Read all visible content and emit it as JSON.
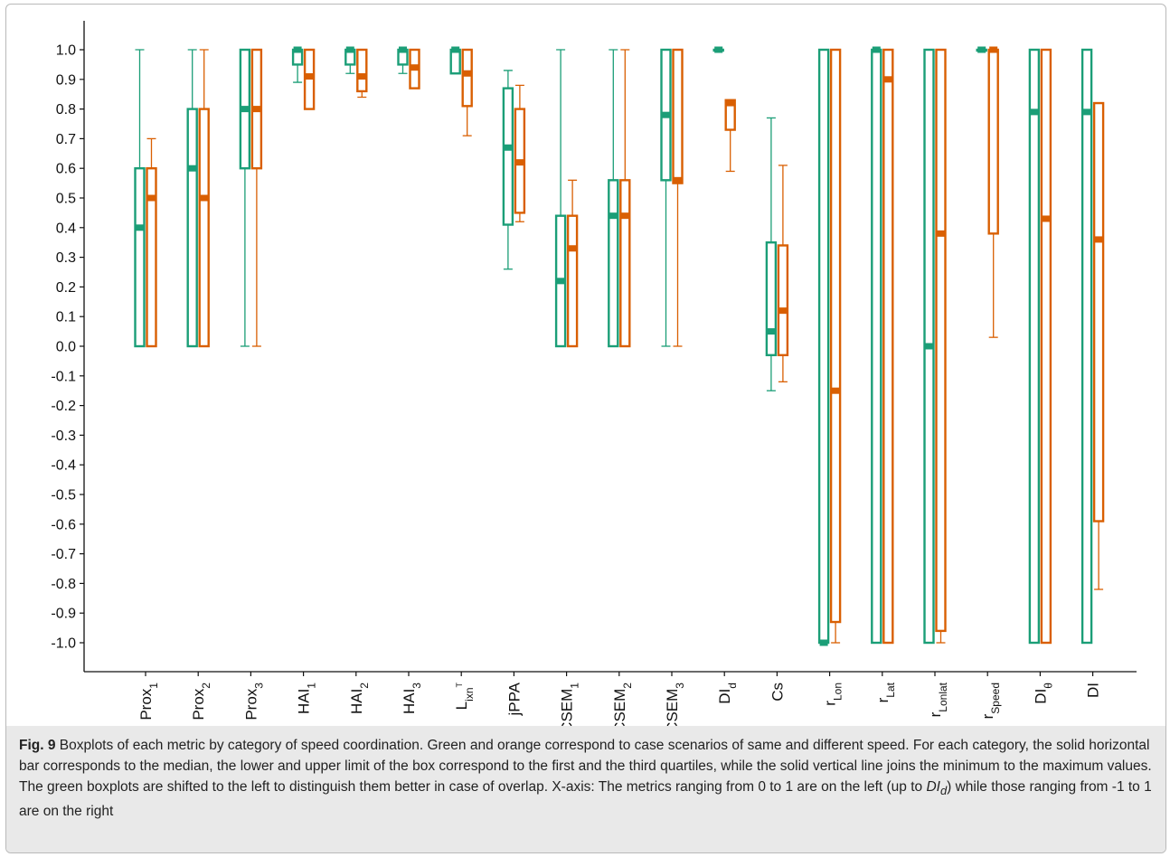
{
  "chart_data": {
    "type": "box",
    "ylim": [
      -1.1,
      1.1
    ],
    "y_ticks": [
      "1.0",
      "0.9",
      "0.8",
      "0.7",
      "0.6",
      "0.5",
      "0.4",
      "0.3",
      "0.2",
      "0.1",
      "0.0",
      "-0.1",
      "-0.2",
      "-0.3",
      "-0.4",
      "-0.5",
      "-0.6",
      "-0.7",
      "-0.8",
      "-0.9",
      "-1.0"
    ],
    "categories": [
      {
        "base": "Prox",
        "sub": "1"
      },
      {
        "base": "Prox",
        "sub": "2"
      },
      {
        "base": "Prox",
        "sub": "3"
      },
      {
        "base": "HAI",
        "sub": "1"
      },
      {
        "base": "HAI",
        "sub": "2"
      },
      {
        "base": "HAI",
        "sub": "3"
      },
      {
        "base": "L",
        "sub": "ixn",
        "sup": "T"
      },
      {
        "base": "jPPA",
        "sub": ""
      },
      {
        "base": "CSEM",
        "sub": "1"
      },
      {
        "base": "CSEM",
        "sub": "2"
      },
      {
        "base": "CSEM",
        "sub": "3"
      },
      {
        "base": "DI",
        "sub": "d"
      },
      {
        "base": "Cs",
        "sub": ""
      },
      {
        "base": "r",
        "sub": "Lon"
      },
      {
        "base": "r",
        "sub": "Lat"
      },
      {
        "base": "r",
        "sub": "Lonlat"
      },
      {
        "base": "r",
        "sub": "Speed"
      },
      {
        "base": "DI",
        "sub": "θ"
      },
      {
        "base": "DI",
        "sub": ""
      }
    ],
    "series": [
      {
        "color": "#1b9e77",
        "stats": [
          {
            "min": 0.0,
            "q1": 0.0,
            "median": 0.4,
            "q3": 0.6,
            "max": 1.0
          },
          {
            "min": 0.0,
            "q1": 0.0,
            "median": 0.6,
            "q3": 0.8,
            "max": 1.0
          },
          {
            "min": 0.0,
            "q1": 0.6,
            "median": 0.8,
            "q3": 1.0,
            "max": 1.0
          },
          {
            "min": 0.89,
            "q1": 0.95,
            "median": 1.0,
            "q3": 1.0,
            "max": 1.0
          },
          {
            "min": 0.92,
            "q1": 0.95,
            "median": 1.0,
            "q3": 1.0,
            "max": 1.0
          },
          {
            "min": 0.92,
            "q1": 0.95,
            "median": 1.0,
            "q3": 1.0,
            "max": 1.0
          },
          {
            "min": 0.92,
            "q1": 0.92,
            "median": 1.0,
            "q3": 1.0,
            "max": 1.0
          },
          {
            "min": 0.26,
            "q1": 0.41,
            "median": 0.67,
            "q3": 0.87,
            "max": 0.93
          },
          {
            "min": 0.0,
            "q1": 0.0,
            "median": 0.22,
            "q3": 0.44,
            "max": 1.0
          },
          {
            "min": 0.0,
            "q1": 0.0,
            "median": 0.44,
            "q3": 0.56,
            "max": 1.0
          },
          {
            "min": 0.0,
            "q1": 0.56,
            "median": 0.78,
            "q3": 1.0,
            "max": 1.0
          },
          {
            "min": 1.0,
            "q1": 1.0,
            "median": 1.0,
            "q3": 1.0,
            "max": 1.0
          },
          {
            "min": -0.15,
            "q1": -0.03,
            "median": 0.05,
            "q3": 0.35,
            "max": 0.77
          },
          {
            "min": -1.0,
            "q1": -1.0,
            "median": -1.0,
            "q3": 1.0,
            "max": 1.0
          },
          {
            "min": -1.0,
            "q1": -1.0,
            "median": 1.0,
            "q3": 1.0,
            "max": 1.0
          },
          {
            "min": -1.0,
            "q1": -1.0,
            "median": 0.0,
            "q3": 1.0,
            "max": 1.0
          },
          {
            "min": 1.0,
            "q1": 1.0,
            "median": 1.0,
            "q3": 1.0,
            "max": 1.0
          },
          {
            "min": -1.0,
            "q1": -1.0,
            "median": 0.79,
            "q3": 1.0,
            "max": 1.0
          },
          {
            "min": -1.0,
            "q1": -1.0,
            "median": 0.79,
            "q3": 1.0,
            "max": 1.0
          }
        ]
      },
      {
        "color": "#d95f02",
        "stats": [
          {
            "min": 0.0,
            "q1": 0.0,
            "median": 0.5,
            "q3": 0.6,
            "max": 0.7
          },
          {
            "min": 0.0,
            "q1": 0.0,
            "median": 0.5,
            "q3": 0.8,
            "max": 1.0
          },
          {
            "min": 0.0,
            "q1": 0.6,
            "median": 0.8,
            "q3": 1.0,
            "max": 1.0
          },
          {
            "min": 0.8,
            "q1": 0.8,
            "median": 0.91,
            "q3": 1.0,
            "max": 1.0
          },
          {
            "min": 0.84,
            "q1": 0.86,
            "median": 0.91,
            "q3": 1.0,
            "max": 1.0
          },
          {
            "min": 0.87,
            "q1": 0.87,
            "median": 0.94,
            "q3": 1.0,
            "max": 1.0
          },
          {
            "min": 0.71,
            "q1": 0.81,
            "median": 0.92,
            "q3": 1.0,
            "max": 1.0
          },
          {
            "min": 0.42,
            "q1": 0.45,
            "median": 0.62,
            "q3": 0.8,
            "max": 0.88
          },
          {
            "min": 0.0,
            "q1": 0.0,
            "median": 0.33,
            "q3": 0.44,
            "max": 0.56
          },
          {
            "min": 0.0,
            "q1": 0.0,
            "median": 0.44,
            "q3": 0.56,
            "max": 1.0
          },
          {
            "min": 0.0,
            "q1": 0.55,
            "median": 0.56,
            "q3": 1.0,
            "max": 1.0
          },
          {
            "min": 0.59,
            "q1": 0.73,
            "median": 0.82,
            "q3": 0.83,
            "max": 0.83
          },
          {
            "min": -0.12,
            "q1": -0.03,
            "median": 0.12,
            "q3": 0.34,
            "max": 0.61
          },
          {
            "min": -1.0,
            "q1": -0.93,
            "median": -0.15,
            "q3": 1.0,
            "max": 1.0
          },
          {
            "min": -1.0,
            "q1": -1.0,
            "median": 0.9,
            "q3": 1.0,
            "max": 1.0
          },
          {
            "min": -1.0,
            "q1": -0.96,
            "median": 0.38,
            "q3": 1.0,
            "max": 1.0
          },
          {
            "min": 0.03,
            "q1": 0.38,
            "median": 1.0,
            "q3": 1.0,
            "max": 1.0
          },
          {
            "min": -1.0,
            "q1": -1.0,
            "median": 0.43,
            "q3": 1.0,
            "max": 1.0
          },
          {
            "min": -0.82,
            "q1": -0.59,
            "median": 0.36,
            "q3": 0.82,
            "max": 0.82
          }
        ]
      }
    ]
  },
  "caption": {
    "label": "Fig. 9",
    "text_before": " Boxplots of each metric by category of speed coordination. Green and orange correspond to case scenarios of same and different speed. For each category, the solid horizontal bar corresponds to the median, the lower and upper limit of the box correspond to the first and the third quartiles, while the solid vertical line joins the minimum to the maximum values. The green boxplots are shifted to the left to distinguish them better in case of overlap. X-axis: The metrics ranging from 0 to 1 are on the left (up to ",
    "italic_base": "DI",
    "italic_sub": "d",
    "text_after": ") while those ranging from -1 to 1 are on the right"
  }
}
